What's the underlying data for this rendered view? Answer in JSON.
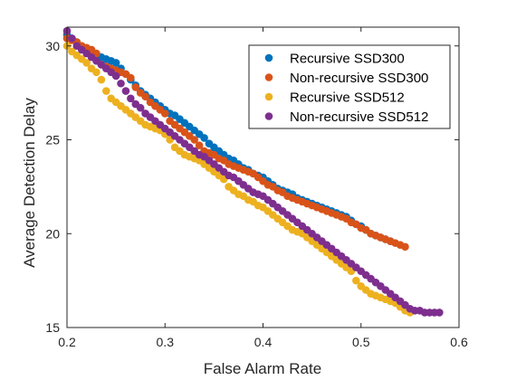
{
  "chart_data": {
    "type": "scatter",
    "title": "",
    "xlabel": "False Alarm Rate",
    "ylabel": "Average Detection Delay",
    "xlim": [
      0.2,
      0.6
    ],
    "ylim": [
      15,
      31
    ],
    "xticks": [
      0.2,
      0.3,
      0.4,
      0.5,
      0.6
    ],
    "yticks": [
      15,
      20,
      25,
      30
    ],
    "xtick_labels": [
      "0.2",
      "0.3",
      "0.4",
      "0.5",
      "0.6"
    ],
    "ytick_labels": [
      "15",
      "20",
      "25",
      "30"
    ],
    "grid": false,
    "box": true,
    "legend": {
      "placement": "top-right"
    },
    "series": [
      {
        "name": "Recursive SSD300",
        "color": "#0072BD",
        "x": [
          0.2,
          0.205,
          0.21,
          0.215,
          0.22,
          0.225,
          0.23,
          0.235,
          0.24,
          0.245,
          0.25,
          0.255,
          0.26,
          0.265,
          0.27,
          0.275,
          0.28,
          0.285,
          0.29,
          0.295,
          0.3,
          0.305,
          0.31,
          0.315,
          0.32,
          0.325,
          0.33,
          0.335,
          0.34,
          0.345,
          0.35,
          0.355,
          0.36,
          0.365,
          0.37,
          0.375,
          0.38,
          0.385,
          0.39,
          0.395,
          0.4,
          0.405,
          0.41,
          0.415,
          0.42,
          0.425,
          0.43,
          0.435,
          0.44,
          0.445,
          0.45,
          0.455,
          0.46,
          0.465,
          0.47,
          0.475,
          0.48,
          0.485,
          0.49,
          0.495,
          0.5,
          0.505,
          0.51,
          0.515,
          0.52,
          0.525,
          0.53
        ],
        "y": [
          30.6,
          30.4,
          30.2,
          30.0,
          29.8,
          29.6,
          29.5,
          29.4,
          29.3,
          29.2,
          29.1,
          28.8,
          28.5,
          28.2,
          27.9,
          27.6,
          27.4,
          27.2,
          27.0,
          26.8,
          26.6,
          26.4,
          26.3,
          26.1,
          25.9,
          25.7,
          25.5,
          25.3,
          25.1,
          24.8,
          24.6,
          24.4,
          24.2,
          24.0,
          23.9,
          23.7,
          23.5,
          23.4,
          23.2,
          23.1,
          23.0,
          22.8,
          22.6,
          22.4,
          22.3,
          22.2,
          22.1,
          21.9,
          21.8,
          21.7,
          21.6,
          21.5,
          21.4,
          21.3,
          21.2,
          21.1,
          21.0,
          20.9,
          20.7,
          20.5,
          20.4,
          20.2,
          20.0,
          19.9,
          19.8,
          19.7,
          19.6
        ]
      },
      {
        "name": "Non-recursive SSD300",
        "color": "#D95319",
        "x": [
          0.2,
          0.205,
          0.21,
          0.215,
          0.22,
          0.225,
          0.23,
          0.235,
          0.24,
          0.245,
          0.25,
          0.255,
          0.26,
          0.265,
          0.27,
          0.275,
          0.28,
          0.285,
          0.29,
          0.295,
          0.3,
          0.305,
          0.31,
          0.315,
          0.32,
          0.325,
          0.33,
          0.335,
          0.34,
          0.345,
          0.35,
          0.355,
          0.36,
          0.365,
          0.37,
          0.375,
          0.38,
          0.385,
          0.39,
          0.395,
          0.4,
          0.405,
          0.41,
          0.415,
          0.42,
          0.425,
          0.43,
          0.435,
          0.44,
          0.445,
          0.45,
          0.455,
          0.46,
          0.465,
          0.47,
          0.475,
          0.48,
          0.485,
          0.49,
          0.495,
          0.5,
          0.505,
          0.51,
          0.515,
          0.52,
          0.525,
          0.53,
          0.535,
          0.54,
          0.545
        ],
        "y": [
          30.4,
          30.3,
          30.2,
          30.0,
          29.9,
          29.8,
          29.6,
          29.0,
          28.9,
          28.8,
          28.7,
          28.6,
          28.5,
          28.3,
          27.8,
          27.5,
          27.3,
          27.0,
          26.8,
          26.6,
          26.4,
          26.0,
          25.8,
          25.6,
          25.4,
          25.2,
          25.0,
          24.7,
          24.4,
          24.3,
          24.2,
          24.0,
          23.9,
          23.7,
          23.6,
          23.5,
          23.4,
          23.3,
          23.2,
          23.0,
          22.8,
          22.6,
          22.5,
          22.3,
          22.2,
          22.0,
          21.9,
          21.8,
          21.7,
          21.6,
          21.5,
          21.4,
          21.3,
          21.2,
          21.1,
          21.0,
          20.9,
          20.8,
          20.6,
          20.5,
          20.3,
          20.2,
          20.0,
          19.9,
          19.8,
          19.7,
          19.6,
          19.5,
          19.4,
          19.3
        ]
      },
      {
        "name": "Recursive SSD512",
        "color": "#EDB120",
        "x": [
          0.2,
          0.205,
          0.21,
          0.215,
          0.22,
          0.225,
          0.23,
          0.235,
          0.24,
          0.245,
          0.25,
          0.255,
          0.26,
          0.265,
          0.27,
          0.275,
          0.28,
          0.285,
          0.29,
          0.295,
          0.3,
          0.305,
          0.31,
          0.315,
          0.32,
          0.325,
          0.33,
          0.335,
          0.34,
          0.345,
          0.35,
          0.355,
          0.36,
          0.365,
          0.37,
          0.375,
          0.38,
          0.385,
          0.39,
          0.395,
          0.4,
          0.405,
          0.41,
          0.415,
          0.42,
          0.425,
          0.43,
          0.435,
          0.44,
          0.445,
          0.45,
          0.455,
          0.46,
          0.465,
          0.47,
          0.475,
          0.48,
          0.485,
          0.49,
          0.495,
          0.5,
          0.505,
          0.51,
          0.515,
          0.52,
          0.525,
          0.53,
          0.535,
          0.54,
          0.545,
          0.55
        ],
        "y": [
          30.0,
          29.7,
          29.5,
          29.3,
          29.1,
          28.8,
          28.6,
          28.2,
          27.6,
          27.2,
          27.0,
          26.8,
          26.6,
          26.4,
          26.2,
          26.0,
          25.8,
          25.7,
          25.6,
          25.5,
          25.3,
          25.0,
          24.6,
          24.4,
          24.2,
          24.1,
          24.0,
          23.9,
          23.7,
          23.5,
          23.3,
          23.1,
          22.9,
          22.5,
          22.3,
          22.1,
          22.0,
          21.8,
          21.7,
          21.5,
          21.4,
          21.2,
          21.0,
          20.8,
          20.6,
          20.4,
          20.2,
          20.1,
          20.0,
          19.8,
          19.6,
          19.4,
          19.2,
          19.0,
          18.8,
          18.6,
          18.4,
          18.2,
          18.0,
          17.5,
          17.2,
          17.0,
          16.8,
          16.7,
          16.6,
          16.5,
          16.4,
          16.3,
          16.1,
          15.9,
          15.8
        ]
      },
      {
        "name": "Non-recursive SSD512",
        "color": "#7E2F8E",
        "x": [
          0.2,
          0.205,
          0.21,
          0.215,
          0.22,
          0.225,
          0.23,
          0.235,
          0.24,
          0.245,
          0.25,
          0.255,
          0.26,
          0.265,
          0.27,
          0.275,
          0.28,
          0.285,
          0.29,
          0.295,
          0.3,
          0.305,
          0.31,
          0.315,
          0.32,
          0.325,
          0.33,
          0.335,
          0.34,
          0.345,
          0.35,
          0.355,
          0.36,
          0.365,
          0.37,
          0.375,
          0.38,
          0.385,
          0.39,
          0.395,
          0.4,
          0.405,
          0.41,
          0.415,
          0.42,
          0.425,
          0.43,
          0.435,
          0.44,
          0.445,
          0.45,
          0.455,
          0.46,
          0.465,
          0.47,
          0.475,
          0.48,
          0.485,
          0.49,
          0.495,
          0.5,
          0.505,
          0.51,
          0.515,
          0.52,
          0.525,
          0.53,
          0.535,
          0.54,
          0.545,
          0.55,
          0.555,
          0.56,
          0.565,
          0.57,
          0.575,
          0.58
        ],
        "y": [
          30.8,
          30.4,
          30.0,
          29.8,
          29.6,
          29.4,
          29.2,
          29.0,
          28.8,
          28.6,
          28.4,
          28.0,
          27.6,
          27.2,
          26.9,
          26.7,
          26.4,
          26.2,
          26.0,
          25.8,
          25.6,
          25.4,
          25.2,
          25.0,
          24.8,
          24.6,
          24.4,
          24.2,
          24.1,
          23.9,
          23.7,
          23.5,
          23.3,
          23.1,
          23.0,
          22.8,
          22.6,
          22.4,
          22.2,
          22.1,
          22.0,
          21.8,
          21.6,
          21.4,
          21.2,
          21.0,
          20.8,
          20.6,
          20.4,
          20.2,
          20.0,
          19.8,
          19.6,
          19.4,
          19.2,
          19.0,
          18.8,
          18.6,
          18.4,
          18.2,
          18.0,
          17.8,
          17.6,
          17.4,
          17.2,
          17.0,
          16.8,
          16.6,
          16.4,
          16.2,
          16.0,
          15.9,
          15.9,
          15.8,
          15.8,
          15.8,
          15.8
        ]
      }
    ]
  }
}
